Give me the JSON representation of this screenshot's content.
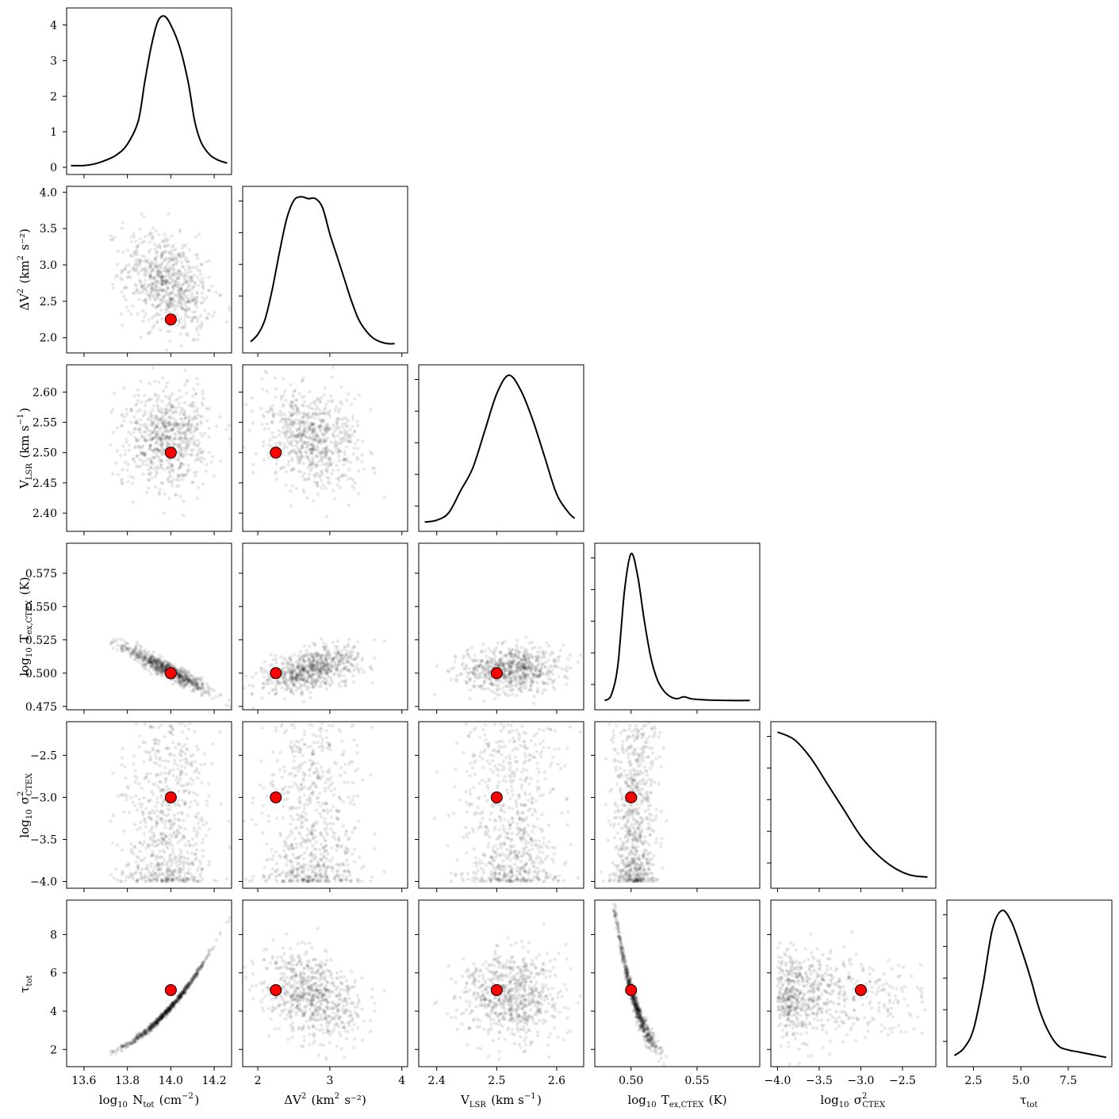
{
  "chart_data": {
    "type": "corner",
    "parameters": [
      {
        "key": "logN",
        "label": {
          "pre": "log",
          "sub_pre": "10",
          "mid": " N",
          "sub": "tot",
          "sup": "",
          "post": " (cm",
          "post_sup": "−2",
          "end": ")"
        },
        "range": [
          13.52,
          14.28
        ],
        "ticks": [
          13.6,
          13.8,
          14.0,
          14.2
        ],
        "tick_labels": [
          "13.6",
          "13.8",
          "14.0",
          "14.2"
        ],
        "truth": 14.0,
        "mean": 13.98,
        "sd": 0.1,
        "kde_x": [
          13.54,
          13.6,
          13.65,
          13.7,
          13.75,
          13.8,
          13.85,
          13.88,
          13.91,
          13.94,
          13.97,
          14.0,
          14.04,
          14.08,
          14.11,
          14.14,
          14.18,
          14.22,
          14.26
        ],
        "kde_y": [
          0.05,
          0.05,
          0.1,
          0.2,
          0.35,
          0.65,
          1.3,
          2.4,
          3.4,
          4.1,
          4.25,
          4.0,
          3.4,
          2.4,
          1.3,
          0.7,
          0.35,
          0.2,
          0.12
        ],
        "kde_ylim": [
          -0.2,
          4.48
        ],
        "kde_ticks": [
          0,
          1,
          2,
          3,
          4
        ],
        "kde_tick_labels": [
          "0",
          "1",
          "2",
          "3",
          "4"
        ]
      },
      {
        "key": "dV2",
        "label": {
          "pre": "",
          "sub_pre": "",
          "mid": "ΔV",
          "sub": "",
          "sup": "2",
          "post": " (km",
          "post_sup": "2",
          "end": " s⁻²)"
        },
        "range": [
          1.79,
          4.08
        ],
        "ticks": [
          2.0,
          2.5,
          3.0,
          3.5,
          4.0
        ],
        "tick_labels": [
          "2.0",
          "2.5",
          "3.0",
          "3.5",
          "4.0"
        ],
        "bottom_ticks": [
          2,
          3,
          4
        ],
        "bottom_tick_labels": [
          "2",
          "3",
          "4"
        ],
        "truth": 2.25,
        "mean": 2.75,
        "sd": 0.35,
        "kde_x": [
          1.9,
          2.0,
          2.1,
          2.2,
          2.3,
          2.4,
          2.5,
          2.6,
          2.7,
          2.8,
          2.9,
          3.0,
          3.1,
          3.2,
          3.3,
          3.4,
          3.5,
          3.6,
          3.7,
          3.8,
          3.9
        ],
        "kde_y": [
          0.1,
          0.3,
          0.7,
          1.5,
          2.5,
          3.4,
          3.9,
          4.0,
          3.95,
          3.95,
          3.7,
          3.0,
          2.4,
          1.8,
          1.2,
          0.7,
          0.4,
          0.2,
          0.1,
          0.05,
          0.05
        ]
      },
      {
        "key": "vlsr",
        "label": {
          "pre": "",
          "sub_pre": "",
          "mid": "V",
          "sub": "LSR",
          "sup": "",
          "post": " (km s",
          "post_sup": "−1",
          "end": ")"
        },
        "range": [
          2.37,
          2.645
        ],
        "ticks": [
          2.4,
          2.45,
          2.5,
          2.55,
          2.6
        ],
        "tick_labels": [
          "2.40",
          "2.45",
          "2.50",
          "2.55",
          "2.60"
        ],
        "bottom_ticks": [
          2.4,
          2.5,
          2.6
        ],
        "bottom_tick_labels": [
          "2.4",
          "2.5",
          "2.6"
        ],
        "truth": 2.5,
        "mean": 2.525,
        "sd": 0.04,
        "kde_x": [
          2.38,
          2.4,
          2.42,
          2.44,
          2.46,
          2.48,
          2.5,
          2.52,
          2.54,
          2.56,
          2.58,
          2.6,
          2.62,
          2.63
        ],
        "kde_y": [
          0.05,
          0.1,
          0.3,
          0.9,
          1.5,
          2.5,
          3.5,
          4.0,
          3.6,
          2.8,
          1.8,
          0.8,
          0.3,
          0.15
        ]
      },
      {
        "key": "logTex",
        "label": {
          "pre": "log",
          "sub_pre": "10",
          "mid": " T",
          "sub": "ex,CTEX",
          "sup": "",
          "post": " (K)",
          "post_sup": "",
          "end": ""
        },
        "range": [
          0.4725,
          0.5975
        ],
        "ticks": [
          0.475,
          0.5,
          0.525,
          0.55,
          0.575
        ],
        "tick_labels": [
          "0.475",
          "0.500",
          "0.525",
          "0.550",
          "0.575"
        ],
        "bottom_ticks": [
          0.5,
          0.55
        ],
        "bottom_tick_labels": [
          "0.50",
          "0.55"
        ],
        "truth": 0.5,
        "mean": 0.503,
        "sd": 0.009,
        "kde_x": [
          0.48,
          0.485,
          0.49,
          0.495,
          0.5,
          0.505,
          0.51,
          0.515,
          0.52,
          0.525,
          0.53,
          0.535,
          0.54,
          0.545,
          0.55,
          0.56,
          0.575,
          0.59
        ],
        "kde_y": [
          0.05,
          0.2,
          1.0,
          3.0,
          4.0,
          3.4,
          2.2,
          1.2,
          0.6,
          0.3,
          0.15,
          0.1,
          0.15,
          0.1,
          0.08,
          0.06,
          0.05,
          0.05
        ]
      },
      {
        "key": "logSigma",
        "label": {
          "pre": "log",
          "sub_pre": "10",
          "mid": " σ",
          "sub": "CTEX",
          "sup": "2",
          "post": "",
          "post_sup": "",
          "end": ""
        },
        "range": [
          -4.08,
          -2.1
        ],
        "ticks": [
          -4.0,
          -3.5,
          -3.0,
          -2.5
        ],
        "tick_labels": [
          "−4.0",
          "−3.5",
          "−3.0",
          "−2.5"
        ],
        "truth": -3.0,
        "mean": -3.55,
        "sd": 0.3,
        "kde_x": [
          -4.0,
          -3.8,
          -3.6,
          -3.4,
          -3.2,
          -3.0,
          -2.8,
          -2.6,
          -2.4,
          -2.2
        ],
        "kde_y": [
          4.0,
          3.8,
          3.3,
          2.6,
          1.9,
          1.2,
          0.7,
          0.35,
          0.15,
          0.1
        ]
      },
      {
        "key": "tau",
        "label": {
          "pre": "",
          "sub_pre": "",
          "mid": "τ",
          "sub": "tot",
          "sup": "",
          "post": "",
          "post_sup": "",
          "end": ""
        },
        "range": [
          1.1,
          9.8
        ],
        "ticks": [
          2,
          4,
          6,
          8
        ],
        "tick_labels": [
          "2",
          "4",
          "6",
          "8"
        ],
        "bottom_ticks": [
          2.5,
          5.0,
          7.5
        ],
        "bottom_tick_labels": [
          "2.5",
          "5.0",
          "7.5"
        ],
        "truth": 5.1,
        "mean": 4.8,
        "sd": 1.1,
        "kde_x": [
          1.5,
          2.0,
          2.5,
          3.0,
          3.5,
          4.0,
          4.5,
          5.0,
          5.5,
          6.0,
          6.5,
          7.0,
          7.5,
          8.0,
          8.5,
          9.0,
          9.5
        ],
        "kde_y": [
          0.1,
          0.3,
          0.8,
          2.0,
          3.5,
          4.0,
          3.7,
          3.0,
          2.2,
          1.3,
          0.7,
          0.35,
          0.25,
          0.2,
          0.15,
          0.1,
          0.05
        ]
      }
    ],
    "correlations": {
      "1-0": -0.3,
      "2-0": 0.0,
      "2-1": -0.25,
      "3-0": -0.93,
      "3-1": 0.45,
      "3-2": 0.0,
      "4-0": 0.0,
      "4-1": 0.0,
      "4-2": 0.0,
      "4-3": 0.0,
      "5-0": 0.99,
      "5-1": -0.3,
      "5-2": 0.0,
      "5-3": -0.85,
      "5-4": -0.2
    },
    "n_samples": 700,
    "truth_color": "#ff0000",
    "line_color": "#000000"
  }
}
